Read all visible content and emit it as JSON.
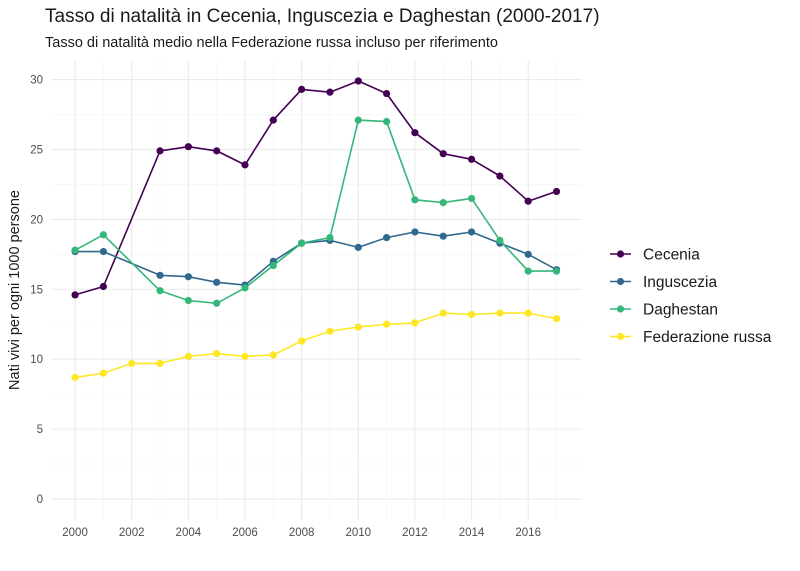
{
  "chart_data": {
    "type": "line",
    "title": "Tasso di natalità in Cecenia, Inguscezia e Daghestan (2000-2017)",
    "subtitle": "Tasso di natalità medio nella Federazione russa incluso per riferimento",
    "xlabel": "",
    "ylabel": "Nati vivi per ogni 1000 persone",
    "x": [
      2000,
      2001,
      2002,
      2003,
      2004,
      2005,
      2006,
      2007,
      2008,
      2009,
      2010,
      2011,
      2012,
      2013,
      2014,
      2015,
      2016,
      2017
    ],
    "xlim": [
      1999.15,
      2017.9
    ],
    "ylim": [
      -1.5,
      31.4
    ],
    "x_ticks": [
      2000,
      2002,
      2004,
      2006,
      2008,
      2010,
      2012,
      2014,
      2016
    ],
    "x_tick_labels": [
      "2000",
      "2002",
      "2004",
      "2006",
      "2008",
      "2010",
      "2012",
      "2014",
      "2016"
    ],
    "y_ticks": [
      0,
      5,
      10,
      15,
      20,
      25,
      30
    ],
    "y_tick_labels": [
      "0",
      "5",
      "10",
      "15",
      "20",
      "25",
      "30"
    ],
    "grid": true,
    "legend_position": "right",
    "series": [
      {
        "name": "Cecenia",
        "color": "#440154",
        "x": [
          2000,
          2001,
          2003,
          2004,
          2005,
          2006,
          2007,
          2008,
          2009,
          2010,
          2011,
          2012,
          2013,
          2014,
          2015,
          2016,
          2017
        ],
        "values": [
          14.6,
          15.2,
          24.9,
          25.2,
          24.9,
          23.9,
          27.1,
          29.3,
          29.1,
          29.9,
          29.0,
          26.2,
          24.7,
          24.3,
          23.1,
          21.3,
          22.0
        ]
      },
      {
        "name": "Inguscezia",
        "color": "#31688e",
        "x": [
          2000,
          2001,
          2003,
          2004,
          2005,
          2006,
          2007,
          2008,
          2009,
          2010,
          2011,
          2012,
          2013,
          2014,
          2015,
          2016,
          2017
        ],
        "values": [
          17.7,
          17.7,
          16.0,
          15.9,
          15.5,
          15.3,
          17.0,
          18.3,
          18.5,
          18.0,
          18.7,
          19.1,
          18.8,
          19.1,
          18.3,
          17.5,
          16.4
        ]
      },
      {
        "name": "Daghestan",
        "color": "#35b779",
        "x": [
          2000,
          2001,
          2003,
          2004,
          2005,
          2006,
          2007,
          2008,
          2009,
          2010,
          2011,
          2012,
          2013,
          2014,
          2015,
          2016,
          2017
        ],
        "values": [
          17.8,
          18.9,
          14.9,
          14.2,
          14.0,
          15.1,
          16.7,
          18.3,
          18.7,
          27.1,
          27.0,
          21.4,
          21.2,
          21.5,
          18.5,
          16.3,
          16.3
        ]
      },
      {
        "name": "Federazione russa",
        "color": "#fde725",
        "x": [
          2000,
          2001,
          2002,
          2003,
          2004,
          2005,
          2006,
          2007,
          2008,
          2009,
          2010,
          2011,
          2012,
          2013,
          2014,
          2015,
          2016,
          2017
        ],
        "values": [
          8.7,
          9.0,
          9.7,
          9.7,
          10.2,
          10.4,
          10.2,
          10.3,
          11.3,
          12.0,
          12.3,
          12.5,
          12.6,
          13.3,
          13.2,
          13.3,
          13.3,
          12.9
        ]
      }
    ]
  }
}
